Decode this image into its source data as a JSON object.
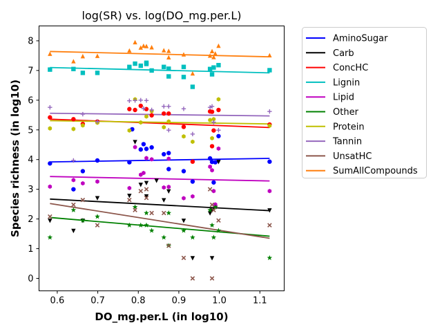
{
  "chart_data": {
    "type": "scatter",
    "title": "log(SR) vs. log(DO_mg.per.L)",
    "xlabel": "DO_mg.per.L (in log10)",
    "ylabel": "Species richness (in log10)",
    "xlim": [
      0.555,
      1.16
    ],
    "ylim": [
      -0.42,
      8.5
    ],
    "xticks": [
      "0.6",
      "0.7",
      "0.8",
      "0.9",
      "1.0",
      "1.1"
    ],
    "xtick_values": [
      0.6,
      0.7,
      0.8,
      0.9,
      1.0,
      1.1
    ],
    "yticks": [
      "0",
      "1",
      "2",
      "3",
      "4",
      "5",
      "6",
      "7",
      "8"
    ],
    "ytick_values": [
      0,
      1,
      2,
      3,
      4,
      5,
      6,
      7,
      8
    ],
    "grid": false,
    "legend_position": "outside-right",
    "series": [
      {
        "name": "AminoSugar",
        "color": "#0000ff",
        "marker": "circle",
        "points": [
          [
            0.582,
            3.87
          ],
          [
            0.64,
            3.0
          ],
          [
            0.663,
            3.61
          ],
          [
            0.699,
            3.97
          ],
          [
            0.778,
            3.91
          ],
          [
            0.785,
            5.02
          ],
          [
            0.806,
            4.34
          ],
          [
            0.813,
            4.52
          ],
          [
            0.82,
            4.36
          ],
          [
            0.833,
            4.41
          ],
          [
            0.863,
            4.18
          ],
          [
            0.875,
            4.22
          ],
          [
            0.875,
            3.68
          ],
          [
            0.912,
            3.61
          ],
          [
            0.934,
            3.26
          ],
          [
            0.977,
            4.04
          ],
          [
            0.982,
            3.92
          ],
          [
            0.986,
            3.23
          ],
          [
            0.99,
            3.91
          ],
          [
            0.998,
            4.79
          ],
          [
            1.124,
            3.93
          ]
        ],
        "fit": [
          3.92,
          4.04
        ]
      },
      {
        "name": "Carb",
        "color": "#000000",
        "marker": "triangle-down",
        "points": [
          [
            0.582,
            1.95
          ],
          [
            0.64,
            1.61
          ],
          [
            0.663,
            1.95
          ],
          [
            0.699,
            2.71
          ],
          [
            0.778,
            2.79
          ],
          [
            0.792,
            4.6
          ],
          [
            0.806,
            3.16
          ],
          [
            0.82,
            3.22
          ],
          [
            0.82,
            2.77
          ],
          [
            0.845,
            3.3
          ],
          [
            0.863,
            2.64
          ],
          [
            0.875,
            2.94
          ],
          [
            0.912,
            1.95
          ],
          [
            0.934,
            0.69
          ],
          [
            0.977,
            2.2
          ],
          [
            0.982,
            2.3
          ],
          [
            0.982,
            0.69
          ],
          [
            0.99,
            2.4
          ],
          [
            0.998,
            3.93
          ],
          [
            1.124,
            2.3
          ]
        ],
        "fit": [
          2.67,
          2.28
        ]
      },
      {
        "name": "ConcHC",
        "color": "#ff0000",
        "marker": "circle",
        "points": [
          [
            0.582,
            5.42
          ],
          [
            0.64,
            5.36
          ],
          [
            0.663,
            5.2
          ],
          [
            0.699,
            5.28
          ],
          [
            0.778,
            5.7
          ],
          [
            0.792,
            5.67
          ],
          [
            0.806,
            5.81
          ],
          [
            0.82,
            5.7
          ],
          [
            0.833,
            5.49
          ],
          [
            0.863,
            5.55
          ],
          [
            0.875,
            5.55
          ],
          [
            0.912,
            5.1
          ],
          [
            0.934,
            3.93
          ],
          [
            0.977,
            5.62
          ],
          [
            0.982,
            5.61
          ],
          [
            0.982,
            4.45
          ],
          [
            0.986,
            4.98
          ],
          [
            0.998,
            5.67
          ],
          [
            1.124,
            5.18
          ]
        ],
        "fit": [
          5.36,
          5.08
        ]
      },
      {
        "name": "Lignin",
        "color": "#00bfbf",
        "marker": "square",
        "points": [
          [
            0.582,
            7.03
          ],
          [
            0.64,
            7.05
          ],
          [
            0.663,
            6.92
          ],
          [
            0.699,
            6.92
          ],
          [
            0.778,
            7.12
          ],
          [
            0.792,
            7.23
          ],
          [
            0.806,
            7.16
          ],
          [
            0.82,
            7.22
          ],
          [
            0.82,
            7.26
          ],
          [
            0.833,
            7.0
          ],
          [
            0.863,
            7.12
          ],
          [
            0.875,
            6.8
          ],
          [
            0.875,
            7.06
          ],
          [
            0.912,
            7.12
          ],
          [
            0.912,
            6.78
          ],
          [
            0.934,
            6.45
          ],
          [
            0.977,
            7.05
          ],
          [
            0.982,
            6.87
          ],
          [
            0.986,
            7.1
          ],
          [
            0.998,
            7.18
          ],
          [
            1.124,
            7.01
          ]
        ],
        "fit": [
          7.1,
          6.92
        ]
      },
      {
        "name": "Lipid",
        "color": "#bf00bf",
        "marker": "hexagon",
        "points": [
          [
            0.582,
            3.09
          ],
          [
            0.64,
            3.31
          ],
          [
            0.663,
            3.2
          ],
          [
            0.699,
            3.26
          ],
          [
            0.778,
            3.04
          ],
          [
            0.792,
            4.42
          ],
          [
            0.806,
            3.49
          ],
          [
            0.813,
            3.55
          ],
          [
            0.82,
            4.05
          ],
          [
            0.833,
            4.01
          ],
          [
            0.863,
            3.06
          ],
          [
            0.875,
            3.08
          ],
          [
            0.875,
            4.03
          ],
          [
            0.912,
            2.7
          ],
          [
            0.934,
            2.76
          ],
          [
            0.977,
            3.76
          ],
          [
            0.982,
            3.64
          ],
          [
            0.986,
            2.94
          ],
          [
            0.99,
            2.49
          ],
          [
            0.998,
            4.37
          ],
          [
            1.124,
            2.94
          ]
        ],
        "fit": [
          3.43,
          3.28
        ]
      },
      {
        "name": "Other",
        "color": "#008000",
        "marker": "star",
        "points": [
          [
            0.582,
            1.38
          ],
          [
            0.64,
            2.3
          ],
          [
            0.663,
            1.95
          ],
          [
            0.699,
            2.08
          ],
          [
            0.778,
            1.79
          ],
          [
            0.792,
            2.4
          ],
          [
            0.806,
            1.79
          ],
          [
            0.82,
            1.79
          ],
          [
            0.82,
            2.2
          ],
          [
            0.833,
            1.61
          ],
          [
            0.863,
            1.38
          ],
          [
            0.875,
            1.1
          ],
          [
            0.875,
            2.2
          ],
          [
            0.912,
            1.61
          ],
          [
            0.934,
            1.38
          ],
          [
            0.977,
            2.3
          ],
          [
            0.982,
            1.79
          ],
          [
            0.986,
            1.38
          ],
          [
            0.99,
            2.4
          ],
          [
            0.998,
            1.61
          ],
          [
            1.124,
            0.69
          ]
        ],
        "fit": [
          2.05,
          1.42
        ]
      },
      {
        "name": "Protein",
        "color": "#bfbf00",
        "marker": "hexagon",
        "points": [
          [
            0.582,
            5.05
          ],
          [
            0.64,
            5.03
          ],
          [
            0.663,
            5.15
          ],
          [
            0.699,
            5.24
          ],
          [
            0.778,
            4.98
          ],
          [
            0.792,
            6.03
          ],
          [
            0.806,
            5.25
          ],
          [
            0.82,
            5.45
          ],
          [
            0.833,
            5.63
          ],
          [
            0.863,
            5.09
          ],
          [
            0.875,
            5.28
          ],
          [
            0.912,
            4.78
          ],
          [
            0.934,
            4.6
          ],
          [
            0.977,
            5.33
          ],
          [
            0.982,
            4.72
          ],
          [
            0.986,
            5.36
          ],
          [
            0.998,
            6.03
          ],
          [
            1.124,
            5.14
          ]
        ],
        "fit": [
          5.31,
          5.2
        ]
      },
      {
        "name": "Tannin",
        "color": "#9467bd",
        "marker": "plus",
        "points": [
          [
            0.582,
            5.76
          ],
          [
            0.64,
            3.97
          ],
          [
            0.663,
            5.53
          ],
          [
            0.699,
            5.28
          ],
          [
            0.778,
            5.98
          ],
          [
            0.792,
            5.99
          ],
          [
            0.806,
            6.0
          ],
          [
            0.813,
            5.72
          ],
          [
            0.82,
            5.99
          ],
          [
            0.833,
            5.67
          ],
          [
            0.863,
            5.79
          ],
          [
            0.875,
            5.79
          ],
          [
            0.875,
            4.99
          ],
          [
            0.912,
            5.71
          ],
          [
            0.934,
            4.86
          ],
          [
            0.977,
            5.76
          ],
          [
            0.982,
            5.79
          ],
          [
            0.986,
            5.26
          ],
          [
            0.998,
            4.99
          ],
          [
            1.124,
            5.62
          ]
        ],
        "fit": [
          5.56,
          5.47
        ]
      },
      {
        "name": "UnsatHC",
        "color": "#8c564b",
        "marker": "x",
        "points": [
          [
            0.582,
            2.08
          ],
          [
            0.64,
            2.48
          ],
          [
            0.663,
            2.64
          ],
          [
            0.699,
            1.79
          ],
          [
            0.778,
            2.64
          ],
          [
            0.792,
            2.3
          ],
          [
            0.806,
            2.94
          ],
          [
            0.82,
            2.71
          ],
          [
            0.82,
            3.0
          ],
          [
            0.833,
            2.2
          ],
          [
            0.863,
            2.2
          ],
          [
            0.875,
            1.1
          ],
          [
            0.912,
            0.69
          ],
          [
            0.934,
            0.0
          ],
          [
            0.977,
            3.0
          ],
          [
            0.982,
            2.48
          ],
          [
            0.982,
            0.0
          ],
          [
            0.986,
            2.3
          ],
          [
            0.998,
            1.95
          ],
          [
            1.124,
            1.79
          ]
        ],
        "fit": [
          2.52,
          1.35
        ]
      },
      {
        "name": "SumAllCompounds",
        "color": "#ff7f0e",
        "marker": "triangle-up",
        "points": [
          [
            0.582,
            7.55
          ],
          [
            0.64,
            7.3
          ],
          [
            0.663,
            7.47
          ],
          [
            0.699,
            7.48
          ],
          [
            0.778,
            7.66
          ],
          [
            0.792,
            7.94
          ],
          [
            0.806,
            7.76
          ],
          [
            0.813,
            7.82
          ],
          [
            0.82,
            7.81
          ],
          [
            0.833,
            7.77
          ],
          [
            0.863,
            7.67
          ],
          [
            0.875,
            7.65
          ],
          [
            0.875,
            7.43
          ],
          [
            0.912,
            7.53
          ],
          [
            0.934,
            6.89
          ],
          [
            0.977,
            7.49
          ],
          [
            0.982,
            7.64
          ],
          [
            0.986,
            7.44
          ],
          [
            0.99,
            7.56
          ],
          [
            0.998,
            7.82
          ],
          [
            1.124,
            7.5
          ]
        ],
        "fit": [
          7.64,
          7.46
        ]
      }
    ]
  }
}
